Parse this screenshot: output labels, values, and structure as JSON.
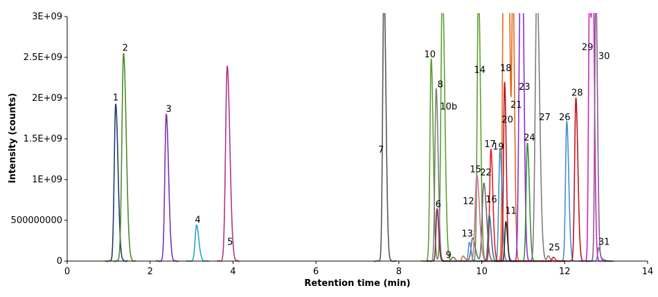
{
  "chart_data": {
    "type": "line",
    "title": "",
    "xlabel": "Retention time (min)",
    "ylabel": "Intensity (counts)",
    "xlim": [
      0,
      14
    ],
    "ylim": [
      0,
      3000000000
    ],
    "x_ticks": [
      0,
      2,
      4,
      6,
      8,
      10,
      12,
      14
    ],
    "x_tick_labels": [
      "0",
      "2",
      "4",
      "6",
      "8",
      "10",
      "12",
      "14"
    ],
    "y_ticks": [
      0,
      500000000,
      1000000000,
      1500000000,
      2000000000,
      2500000000,
      3000000000
    ],
    "y_tick_labels": [
      "0",
      "500000000",
      "1E+09",
      "1.5E+09",
      "2E+09",
      "2.5E+09",
      "3E+09"
    ],
    "grid": false,
    "legend": "none",
    "series": [
      {
        "color": "#1f3a6e",
        "peaks": [
          {
            "rt": 1.17,
            "height": 1930000000,
            "width": 0.035
          }
        ]
      },
      {
        "color": "#4a8a2a",
        "peaks": [
          {
            "rt": 1.36,
            "height": 2550000000,
            "width": 0.04
          }
        ]
      },
      {
        "color": "#7b2fb0",
        "peaks": [
          {
            "rt": 2.39,
            "height": 1800000000,
            "width": 0.035
          }
        ]
      },
      {
        "color": "#1fa3d4",
        "peaks": [
          {
            "rt": 3.12,
            "height": 440000000,
            "width": 0.035
          }
        ]
      },
      {
        "color": "#b0308f",
        "peaks": [
          {
            "rt": 3.86,
            "height": 2390000000,
            "width": 0.04
          }
        ]
      },
      {
        "color": "#555555",
        "peaks": [
          {
            "rt": 7.64,
            "height": 3400000000,
            "width": 0.03
          }
        ]
      },
      {
        "color": "#5aa02c",
        "peaks": [
          {
            "rt": 8.78,
            "height": 2480000000,
            "width": 0.03
          },
          {
            "rt": 9.05,
            "height": 3400000000,
            "width": 0.035
          },
          {
            "rt": 9.92,
            "height": 3400000000,
            "width": 0.03
          }
        ]
      },
      {
        "color": "#7d7d7d",
        "peaks": [
          {
            "rt": 8.9,
            "height": 2120000000,
            "width": 0.03
          },
          {
            "rt": 11.33,
            "height": 3400000000,
            "width": 0.04
          },
          {
            "rt": 11.6,
            "height": 60000000,
            "width": 0.03
          }
        ]
      },
      {
        "color": "#8a1f5a",
        "peaks": [
          {
            "rt": 8.92,
            "height": 640000000,
            "width": 0.025
          }
        ]
      },
      {
        "color": "#6a6a6a",
        "peaks": [
          {
            "rt": 9.3,
            "height": 50000000,
            "width": 0.03
          },
          {
            "rt": 9.78,
            "height": 280000000,
            "width": 0.04
          },
          {
            "rt": 10.05,
            "height": 960000000,
            "width": 0.04
          }
        ]
      },
      {
        "color": "#e0671a",
        "peaks": [
          {
            "rt": 9.55,
            "height": 60000000,
            "width": 0.03
          },
          {
            "rt": 10.52,
            "height": 3400000000,
            "width": 0.025
          },
          {
            "rt": 10.58,
            "height": 3400000000,
            "width": 0.025
          },
          {
            "rt": 10.65,
            "height": 3400000000,
            "width": 0.025
          },
          {
            "rt": 10.75,
            "height": 3400000000,
            "width": 0.025
          }
        ]
      },
      {
        "color": "#3d8fd6",
        "peaks": [
          {
            "rt": 9.7,
            "height": 230000000,
            "width": 0.025
          },
          {
            "rt": 10.44,
            "height": 1380000000,
            "width": 0.03
          },
          {
            "rt": 12.05,
            "height": 1710000000,
            "width": 0.03
          },
          {
            "rt": 12.82,
            "height": 160000000,
            "width": 0.025
          }
        ]
      },
      {
        "color": "#d96aa0",
        "peaks": [
          {
            "rt": 9.88,
            "height": 1060000000,
            "width": 0.04
          }
        ]
      },
      {
        "color": "#e61e1e",
        "peaks": [
          {
            "rt": 10.22,
            "height": 1370000000,
            "width": 0.03
          },
          {
            "rt": 11.72,
            "height": 50000000,
            "width": 0.025
          }
        ]
      },
      {
        "color": "#2e6f9e",
        "peaks": [
          {
            "rt": 10.18,
            "height": 560000000,
            "width": 0.03
          }
        ]
      },
      {
        "color": "#c0121f",
        "peaks": [
          {
            "rt": 10.55,
            "height": 2200000000,
            "width": 0.025
          },
          {
            "rt": 12.27,
            "height": 2000000000,
            "width": 0.03
          }
        ]
      },
      {
        "color": "#2a2a2a",
        "peaks": [
          {
            "rt": 10.58,
            "height": 480000000,
            "width": 0.025
          }
        ]
      },
      {
        "color": "#8a2be2",
        "peaks": [
          {
            "rt": 10.93,
            "height": 3400000000,
            "width": 0.035
          },
          {
            "rt": 10.99,
            "height": 1780000000,
            "width": 0.025
          }
        ]
      },
      {
        "color": "#3f8a3f",
        "peaks": [
          {
            "rt": 11.1,
            "height": 1450000000,
            "width": 0.03
          }
        ]
      },
      {
        "color": "#d020d0",
        "peaks": [
          {
            "rt": 12.6,
            "height": 3400000000,
            "width": 0.025
          },
          {
            "rt": 12.68,
            "height": 3400000000,
            "width": 0.025
          }
        ]
      },
      {
        "color": "#8a5a8a",
        "peaks": [
          {
            "rt": 12.75,
            "height": 3400000000,
            "width": 0.025
          },
          {
            "rt": 12.9,
            "height": 30000000,
            "width": 0.03
          }
        ]
      }
    ],
    "annotations": [
      {
        "text": "1",
        "x": 1.17,
        "y": 1970000000
      },
      {
        "text": "2",
        "x": 1.4,
        "y": 2580000000
      },
      {
        "text": "3",
        "x": 2.45,
        "y": 1830000000
      },
      {
        "text": "4",
        "x": 3.15,
        "y": 470000000
      },
      {
        "text": "5",
        "x": 3.93,
        "y": 200000000
      },
      {
        "text": "7",
        "x": 7.57,
        "y": 1330000000
      },
      {
        "text": "10",
        "x": 8.75,
        "y": 2500000000
      },
      {
        "text": "8",
        "x": 9.0,
        "y": 2130000000
      },
      {
        "text": "10b",
        "x": 9.2,
        "y": 1860000000
      },
      {
        "text": "6",
        "x": 8.95,
        "y": 660000000
      },
      {
        "text": "9",
        "x": 9.2,
        "y": 40000000
      },
      {
        "text": "14",
        "x": 9.95,
        "y": 2310000000
      },
      {
        "text": "15",
        "x": 9.85,
        "y": 1090000000
      },
      {
        "text": "12",
        "x": 9.68,
        "y": 700000000
      },
      {
        "text": "13",
        "x": 9.65,
        "y": 300000000
      },
      {
        "text": "22",
        "x": 10.1,
        "y": 1050000000
      },
      {
        "text": "16",
        "x": 10.23,
        "y": 720000000
      },
      {
        "text": "17",
        "x": 10.2,
        "y": 1400000000
      },
      {
        "text": "19",
        "x": 10.4,
        "y": 1370000000
      },
      {
        "text": "18",
        "x": 10.58,
        "y": 2330000000
      },
      {
        "text": "20",
        "x": 10.62,
        "y": 1700000000
      },
      {
        "text": "21",
        "x": 10.83,
        "y": 1880000000
      },
      {
        "text": "11",
        "x": 10.7,
        "y": 580000000
      },
      {
        "text": "23",
        "x": 11.03,
        "y": 2100000000
      },
      {
        "text": "24",
        "x": 11.15,
        "y": 1480000000
      },
      {
        "text": "27",
        "x": 11.52,
        "y": 1730000000
      },
      {
        "text": "25",
        "x": 11.75,
        "y": 130000000
      },
      {
        "text": "26",
        "x": 12.0,
        "y": 1730000000
      },
      {
        "text": "28",
        "x": 12.3,
        "y": 2030000000
      },
      {
        "text": "29",
        "x": 12.55,
        "y": 2590000000
      },
      {
        "text": "30",
        "x": 12.95,
        "y": 2480000000
      },
      {
        "text": "31",
        "x": 12.95,
        "y": 200000000
      }
    ]
  }
}
